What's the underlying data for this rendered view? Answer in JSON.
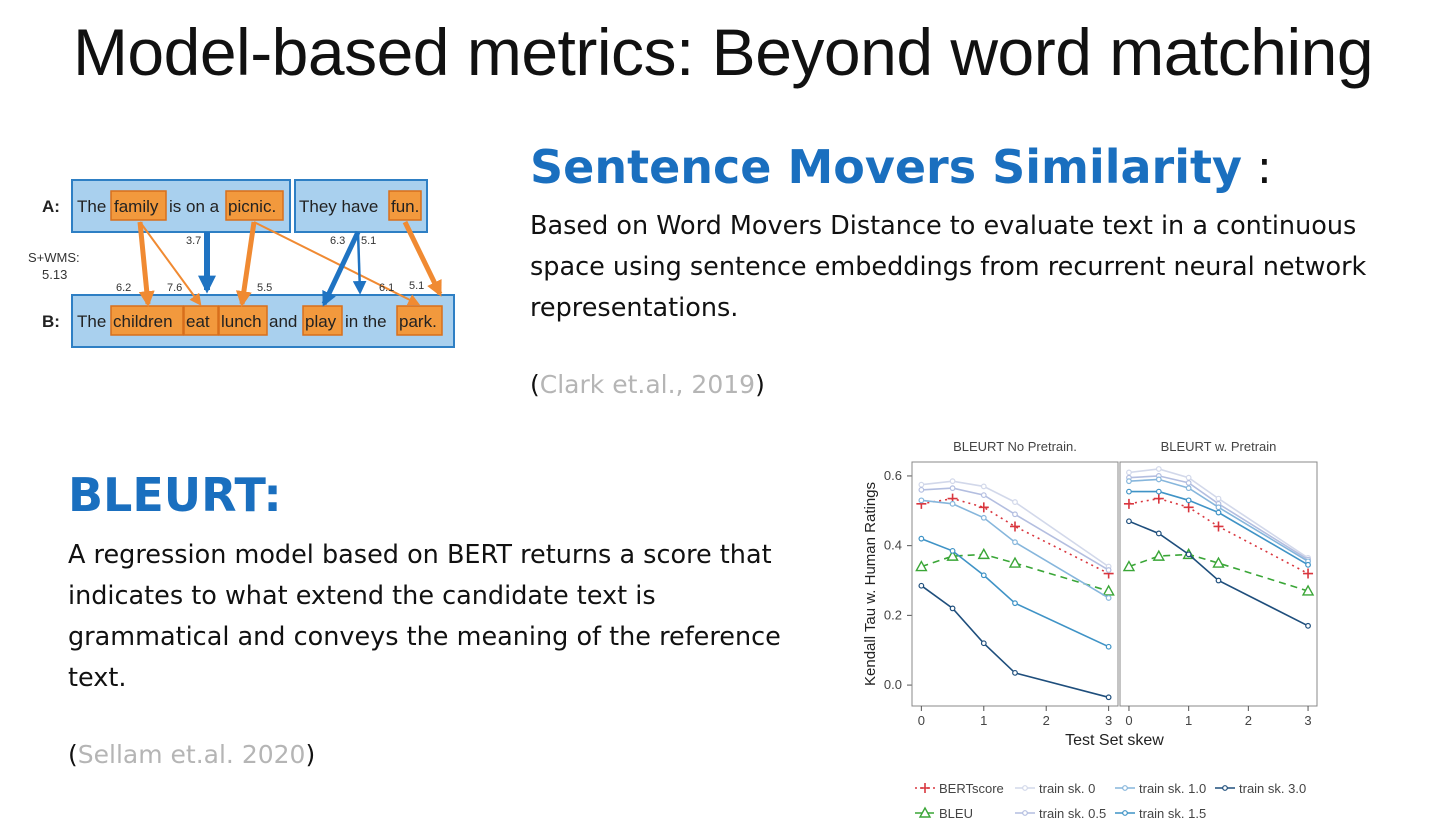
{
  "slide": {
    "title": "Model-based metrics: Beyond word matching"
  },
  "sms": {
    "heading": "Sentence Movers Similarity",
    "colon": " :",
    "body": "Based on Word Movers Distance to evaluate text in a continuous space using sentence embeddings from recurrent neural network representations.",
    "cite_open": "(",
    "cite_text": "Clark et.al., 2019",
    "cite_close": ")"
  },
  "bleurt": {
    "heading": "BLEURT:",
    "body": "A regression model based on BERT returns a score that indicates to what extend the candidate text is grammatical and conveys the meaning of the reference text.",
    "cite_open": "(",
    "cite_text": "Sellam et.al. 2020",
    "cite_close": ")"
  },
  "diagram": {
    "label_a": "A:",
    "label_b": "B:",
    "score_label": "S+WMS:",
    "score_value": "5.13",
    "sentence_a1": [
      "The",
      "family",
      "is on a",
      "picnic."
    ],
    "sentence_a2": [
      "They have",
      "fun."
    ],
    "sentence_b": [
      "The",
      "children",
      "eat",
      "lunch",
      "and",
      "play",
      "in the",
      "park."
    ],
    "weights": [
      "3.7",
      "6.3",
      "5.1",
      "6.2",
      "7.6",
      "5.5",
      "6.1",
      "5.1"
    ],
    "colors": {
      "box_fill": "#a9d0ee",
      "box_stroke": "#2e7fc4",
      "word_fill": "#f2993d",
      "word_stroke": "#d86f1c",
      "arrow_orange": "#f08a32",
      "arrow_blue": "#1f73c2"
    }
  },
  "chart_data": {
    "type": "line",
    "panels": [
      "BLEURT No Pretrain.",
      "BLEURT w. Pretrain"
    ],
    "x": [
      0,
      0.5,
      1,
      1.5,
      3
    ],
    "xticks": [
      "0",
      "1",
      "2",
      "3"
    ],
    "yticks": [
      "0.0",
      "0.2",
      "0.4",
      "0.6"
    ],
    "xlabel": "Test Set skew",
    "ylabel": "Kendall Tau w. Human Ratings",
    "ylim": [
      -0.06,
      0.64
    ],
    "xlim": [
      -0.15,
      3.15
    ],
    "series": [
      {
        "name": "BERTscore",
        "color": "#d9363e",
        "dash": "2,4",
        "marker": "plus",
        "values": [
          [
            0.52,
            0.535,
            0.51,
            0.455,
            0.32
          ],
          [
            0.52,
            0.535,
            0.51,
            0.455,
            0.32
          ]
        ]
      },
      {
        "name": "BLEU",
        "color": "#3aa637",
        "dash": "7,5",
        "marker": "triangle",
        "values": [
          [
            0.34,
            0.37,
            0.375,
            0.35,
            0.27
          ],
          [
            0.34,
            0.37,
            0.375,
            0.35,
            0.27
          ]
        ]
      },
      {
        "name": "train sk. 0",
        "color": "#d2d8ea",
        "dash": "",
        "marker": "circle",
        "values": [
          [
            0.575,
            0.585,
            0.57,
            0.525,
            0.34
          ],
          [
            0.61,
            0.62,
            0.595,
            0.535,
            0.365
          ]
        ]
      },
      {
        "name": "train sk. 0.5",
        "color": "#b3bee0",
        "dash": "",
        "marker": "circle",
        "values": [
          [
            0.56,
            0.565,
            0.545,
            0.49,
            0.33
          ],
          [
            0.595,
            0.6,
            0.58,
            0.52,
            0.36
          ]
        ]
      },
      {
        "name": "train sk. 1.0",
        "color": "#86b6dc",
        "dash": "",
        "marker": "circle",
        "values": [
          [
            0.53,
            0.52,
            0.48,
            0.41,
            0.25
          ],
          [
            0.585,
            0.59,
            0.565,
            0.51,
            0.355
          ]
        ]
      },
      {
        "name": "train sk. 1.5",
        "color": "#3f93c6",
        "dash": "",
        "marker": "circle",
        "values": [
          [
            0.42,
            0.385,
            0.315,
            0.235,
            0.11
          ],
          [
            0.555,
            0.555,
            0.53,
            0.495,
            0.345
          ]
        ]
      },
      {
        "name": "train sk. 3.0",
        "color": "#1e4e7c",
        "dash": "",
        "marker": "circle",
        "values": [
          [
            0.285,
            0.22,
            0.12,
            0.035,
            -0.035
          ],
          [
            0.47,
            0.435,
            0.375,
            0.3,
            0.17
          ]
        ]
      }
    ],
    "legend_rows": [
      [
        "BERTscore",
        "train sk. 0",
        "train sk. 1.0",
        "train sk. 3.0"
      ],
      [
        "BLEU",
        "train sk. 0.5",
        "train sk. 1.5"
      ]
    ]
  }
}
